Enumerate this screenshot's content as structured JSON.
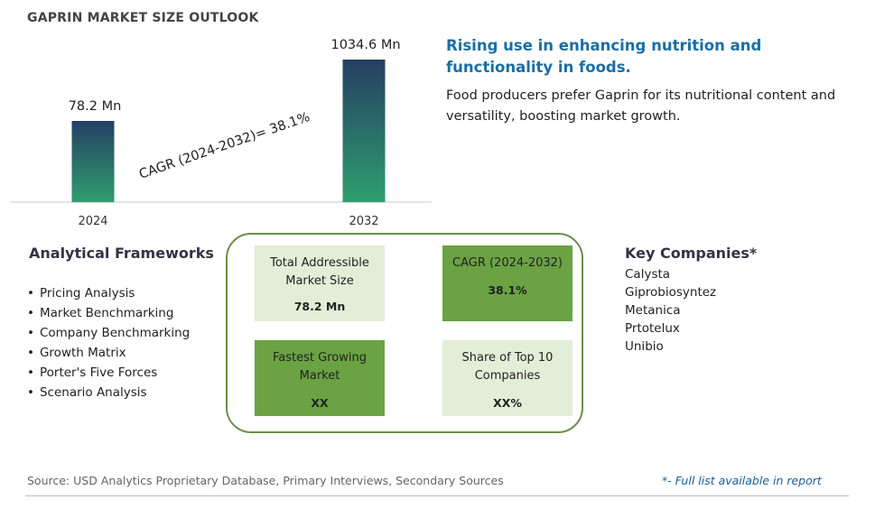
{
  "title": "GAPRIN MARKET SIZE OUTLOOK",
  "chart_data": {
    "type": "bar",
    "categories": [
      "2024",
      "2032"
    ],
    "values": [
      78.2,
      1034.6
    ],
    "value_labels": [
      "78.2 Mn",
      "1034.6 Mn"
    ],
    "annotation": "CAGR (2024-2032)=  38.1%",
    "colors": {
      "bar_top": "#263f63",
      "bar_bottom": "#2e9e6e",
      "axis": "#cccccc"
    }
  },
  "headline": "Rising use in enhancing nutrition and functionality in foods.",
  "description": "Food producers prefer Gaprin for its nutritional content and versatility, boosting market growth.",
  "analytical_frameworks": {
    "title": "Analytical Frameworks",
    "items": [
      "Pricing Analysis",
      "Market Benchmarking",
      "Company Benchmarking",
      "Growth Matrix",
      "Porter's Five Forces",
      "Scenario Analysis"
    ]
  },
  "key_companies": {
    "title": "Key Companies*",
    "items": [
      "Calysta",
      "Giprobiosyntez",
      "Metanica",
      "Prtotelux",
      "Unibio"
    ]
  },
  "boxes": [
    {
      "label": "Total Addressible Market Size",
      "value": "78.2 Mn"
    },
    {
      "label": "CAGR (2024-2032)",
      "value": "38.1%"
    },
    {
      "label": "Fastest Growing Market",
      "value": "XX"
    },
    {
      "label": "Share of Top 10 Companies",
      "value": "XX%"
    }
  ],
  "source": "Source: USD Analytics Proprietary Database, Primary Interviews, Secondary Sources",
  "note": "*- Full list available in report"
}
